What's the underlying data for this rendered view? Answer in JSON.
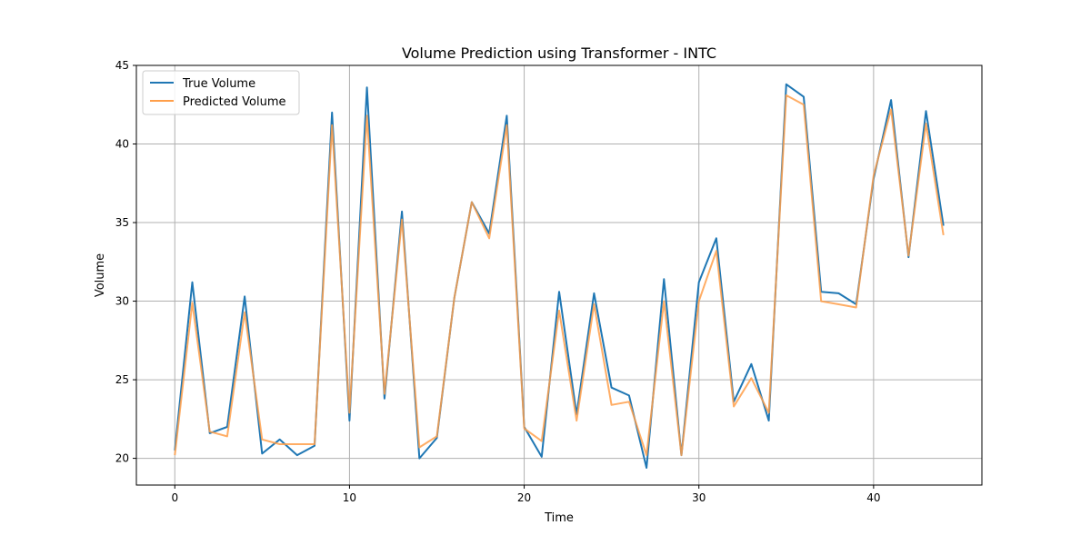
{
  "chart_data": {
    "type": "line",
    "title": "Volume Prediction using Transformer - INTC",
    "xlabel": "Time",
    "ylabel": "Volume",
    "xlim": [
      -2.2,
      46.2
    ],
    "ylim": [
      18.3,
      45
    ],
    "xticks": [
      0,
      10,
      20,
      30,
      40
    ],
    "yticks": [
      20,
      25,
      30,
      35,
      40,
      45
    ],
    "grid": true,
    "legend_position": "top-left",
    "x": [
      0,
      1,
      2,
      3,
      4,
      5,
      6,
      7,
      8,
      9,
      10,
      11,
      12,
      13,
      14,
      15,
      16,
      17,
      18,
      19,
      20,
      21,
      22,
      23,
      24,
      25,
      26,
      27,
      28,
      29,
      30,
      31,
      32,
      33,
      34,
      35,
      36,
      37,
      38,
      39,
      40,
      41,
      42,
      43,
      44
    ],
    "series": [
      {
        "name": "True Volume",
        "color": "#1f77b4",
        "values": [
          20.5,
          31.2,
          21.6,
          22.0,
          30.3,
          20.3,
          21.2,
          20.2,
          20.8,
          42.0,
          22.4,
          43.6,
          23.8,
          35.7,
          20.0,
          21.3,
          30.2,
          36.3,
          34.3,
          41.8,
          22.0,
          20.1,
          30.6,
          22.8,
          30.5,
          24.5,
          24.0,
          19.4,
          31.4,
          20.2,
          31.2,
          34.0,
          23.6,
          26.0,
          22.4,
          43.8,
          43.0,
          30.6,
          30.5,
          29.8,
          37.8,
          42.8,
          32.8,
          42.1,
          34.8
        ]
      },
      {
        "name": "Predicted Volume",
        "color": "#ff9f4a",
        "values": [
          20.2,
          29.9,
          21.7,
          21.4,
          29.3,
          21.2,
          20.9,
          20.9,
          20.9,
          41.2,
          22.9,
          41.8,
          24.1,
          35.2,
          20.7,
          21.4,
          30.2,
          36.3,
          34.0,
          41.2,
          21.9,
          21.1,
          29.4,
          22.4,
          29.8,
          23.4,
          23.6,
          20.2,
          30.0,
          20.2,
          30.0,
          33.2,
          23.3,
          25.1,
          22.9,
          43.1,
          42.5,
          30.0,
          29.8,
          29.6,
          38.0,
          42.2,
          32.9,
          41.3,
          34.2
        ]
      }
    ]
  }
}
